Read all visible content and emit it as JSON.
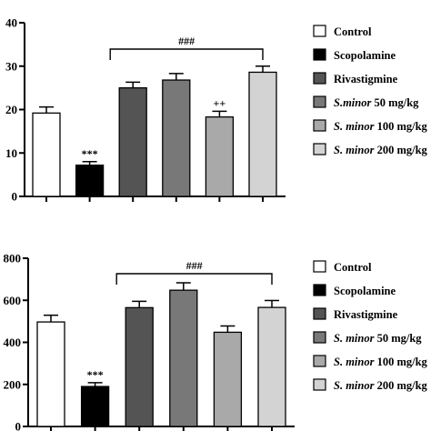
{
  "chart_data": [
    {
      "type": "bar",
      "categories": [
        "Control",
        "Scopolamine",
        "Rivastigmine",
        "S.minor 50 mg/kg",
        "S. minor 100 mg/kg",
        "S. minor 200 mg/kg"
      ],
      "values": [
        19.2,
        7.2,
        25.0,
        26.8,
        18.3,
        28.6
      ],
      "errors": [
        1.4,
        0.8,
        1.3,
        1.5,
        1.3,
        1.4
      ],
      "yticks": [
        0,
        10,
        20,
        30,
        40
      ],
      "ylim": [
        0,
        40
      ],
      "bar_labels": [
        "",
        "***",
        "",
        "",
        "++",
        ""
      ],
      "bracket_label": "###",
      "colors": [
        "#ffffff",
        "#000000",
        "#545454",
        "#787878",
        "#a9a9a9",
        "#d3d3d3"
      ],
      "legend": [
        {
          "em": "",
          "rest": "Control"
        },
        {
          "em": "",
          "rest": "Scopolamine"
        },
        {
          "em": "",
          "rest": "Rivastigmine"
        },
        {
          "em": "S.minor",
          "rest": " 50 mg/kg"
        },
        {
          "em": "S. minor",
          "rest": " 100 mg/kg"
        },
        {
          "em": "S. minor",
          "rest": " 200 mg/kg"
        }
      ]
    },
    {
      "type": "bar",
      "categories": [
        "Control",
        "Scopolamine",
        "Rivastigmine",
        "S. minor 50 mg/kg",
        "S. minor 100 mg/kg",
        "S. minor 200 mg/kg"
      ],
      "values": [
        497,
        190,
        565,
        648,
        448,
        566
      ],
      "errors": [
        32,
        18,
        30,
        35,
        30,
        33
      ],
      "yticks": [
        0,
        200,
        400,
        600,
        800
      ],
      "ylim": [
        0,
        800
      ],
      "bar_labels": [
        "",
        "***",
        "",
        "",
        "",
        ""
      ],
      "bracket_label": "###",
      "colors": [
        "#ffffff",
        "#000000",
        "#545454",
        "#787878",
        "#a9a9a9",
        "#d3d3d3"
      ],
      "legend": [
        {
          "em": "",
          "rest": "Control"
        },
        {
          "em": "",
          "rest": "Scopolamine"
        },
        {
          "em": "",
          "rest": "Rivastigmine"
        },
        {
          "em": "S. minor",
          "rest": " 50 mg/kg"
        },
        {
          "em": "S. minor",
          "rest": " 100 mg/kg"
        },
        {
          "em": "S. minor",
          "rest": " 200 mg/kg"
        }
      ]
    }
  ]
}
